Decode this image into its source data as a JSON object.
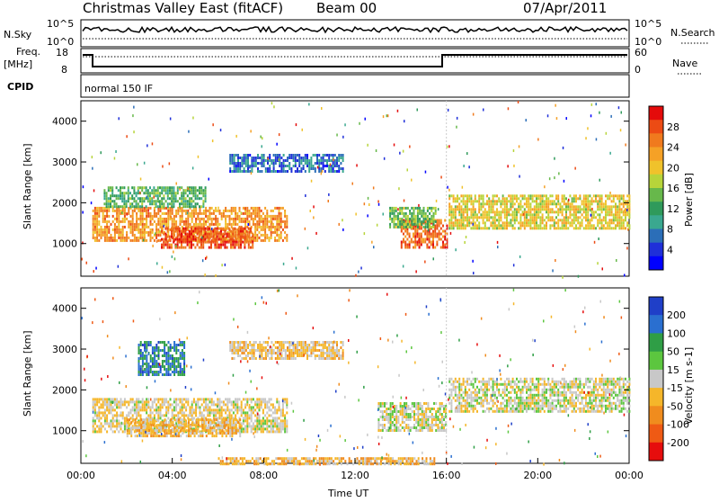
{
  "header": {
    "station": "Christmas Valley East (fitACF)",
    "beam": "Beam 00",
    "date": "07/Apr/2011"
  },
  "panels": {
    "nsky": {
      "label": "N.Sky",
      "ticks": [
        "10^5",
        "10^0"
      ]
    },
    "nsearch": {
      "label": "N.Search",
      "ticks": [
        "10^5",
        "10^0"
      ]
    },
    "freq": {
      "label_1": "Freq.",
      "label_2": "[MHz]",
      "ticks": [
        "18",
        "8"
      ]
    },
    "nave": {
      "label": "Nave",
      "ticks": [
        "60",
        "0"
      ]
    },
    "cpid": {
      "label": "CPID",
      "value": "normal 150 IF"
    }
  },
  "colors": {
    "power": [
      "#0000ff",
      "#1f2fd9",
      "#2b6eb8",
      "#3aa88f",
      "#2f9a5b",
      "#67b84b",
      "#b7d43a",
      "#f0c22b",
      "#f5a126",
      "#f07a1e",
      "#ec4b14",
      "#e40b0b"
    ],
    "velocity": [
      "#1f3fc8",
      "#2a6fd0",
      "#2f9e46",
      "#5cc63f",
      "#c8c8c8",
      "#f5b62a",
      "#f08c1e",
      "#ef5a14",
      "#e60d0d"
    ]
  },
  "chart_data": [
    {
      "type": "heatmap",
      "title": "Power",
      "ylabel": "Slant Range [km]",
      "xlabel": "",
      "ylim": [
        200,
        4500
      ],
      "colorbar": {
        "label": "Power [dB]",
        "ticks": [
          "28",
          "24",
          "20",
          "16",
          "12",
          "8",
          "4"
        ]
      },
      "y_ticks": [
        "4000",
        "3000",
        "2000",
        "1000"
      ],
      "regions": [
        {
          "name": "band-A",
          "x_start": 0.5,
          "x_end": 9.0,
          "y_start": 1100,
          "y_end": 1900,
          "level": 22
        },
        {
          "name": "band-B",
          "x_start": 3.5,
          "x_end": 7.5,
          "y_start": 900,
          "y_end": 1400,
          "level": 26
        },
        {
          "name": "band-C",
          "x_start": 14.0,
          "x_end": 16.0,
          "y_start": 900,
          "y_end": 1600,
          "level": 25
        },
        {
          "name": "band-D",
          "x_start": 16.1,
          "x_end": 24.0,
          "y_start": 1400,
          "y_end": 2200,
          "level": 18
        },
        {
          "name": "band-E",
          "x_start": 1.0,
          "x_end": 5.5,
          "y_start": 1900,
          "y_end": 2400,
          "level": 12
        },
        {
          "name": "band-F",
          "x_start": 13.5,
          "x_end": 15.5,
          "y_start": 1400,
          "y_end": 1900,
          "level": 14
        },
        {
          "name": "upper-arc",
          "x_start": 6.5,
          "x_end": 11.5,
          "y_start": 2800,
          "y_end": 3200,
          "level": 6
        }
      ]
    },
    {
      "type": "heatmap",
      "title": "Velocity",
      "ylabel": "Slant Range [km]",
      "xlabel": "Time UT",
      "ylim": [
        200,
        4500
      ],
      "colorbar": {
        "label": "Velocity [m s-1]",
        "ticks": [
          "200",
          "100",
          "50",
          "15",
          "-15",
          "-50",
          "-100",
          "-200"
        ]
      },
      "x_ticks": [
        "00:00",
        "04:00",
        "08:00",
        "12:00",
        "16:00",
        "20:00",
        "00:00"
      ],
      "y_ticks": [
        "4000",
        "3000",
        "2000",
        "1000"
      ],
      "regions": [
        {
          "name": "vel-A",
          "x_start": 0.5,
          "x_end": 9.0,
          "y_start": 1000,
          "y_end": 1800,
          "level": -20
        },
        {
          "name": "vel-B",
          "x_start": 2.0,
          "x_end": 7.0,
          "y_start": 900,
          "y_end": 1300,
          "level": -60
        },
        {
          "name": "vel-C",
          "x_start": 16.1,
          "x_end": 24.0,
          "y_start": 1500,
          "y_end": 2300,
          "level": 0
        },
        {
          "name": "vel-D",
          "x_start": 13.0,
          "x_end": 16.0,
          "y_start": 1000,
          "y_end": 1700,
          "level": 0
        },
        {
          "name": "vel-E",
          "x_start": 2.5,
          "x_end": 4.5,
          "y_start": 2400,
          "y_end": 3200,
          "level": 150
        },
        {
          "name": "vel-F",
          "x_start": 6.5,
          "x_end": 11.5,
          "y_start": 2800,
          "y_end": 3200,
          "level": -40
        },
        {
          "name": "vel-G",
          "x_start": 6.0,
          "x_end": 15.5,
          "y_start": 200,
          "y_end": 350,
          "level": -60
        }
      ]
    }
  ]
}
